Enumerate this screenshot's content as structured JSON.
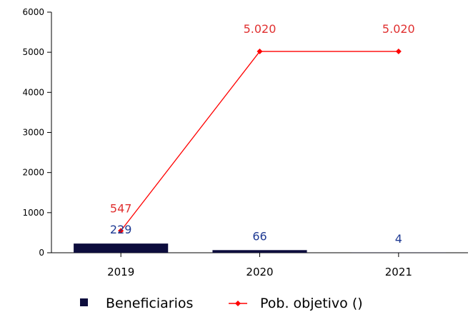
{
  "chart_data": {
    "type": "bar",
    "categories": [
      "2019",
      "2020",
      "2021"
    ],
    "ylim": [
      0,
      6000
    ],
    "yticks": [
      0,
      1000,
      2000,
      3000,
      4000,
      5000,
      6000
    ],
    "series": [
      {
        "name": "Beneficiarios",
        "kind": "bar",
        "color": "#0d0d3d",
        "label_color": "#1f3a93",
        "values": [
          229,
          66,
          4
        ],
        "labels": [
          "229",
          "66",
          "4"
        ]
      },
      {
        "name": "Pob. objetivo ()",
        "kind": "line",
        "color": "#ff0000",
        "label_color": "#e03030",
        "values": [
          547,
          5020,
          5020
        ],
        "labels": [
          "547",
          "5.020",
          "5.020"
        ]
      }
    ],
    "legend": "bottom",
    "grid": false
  }
}
